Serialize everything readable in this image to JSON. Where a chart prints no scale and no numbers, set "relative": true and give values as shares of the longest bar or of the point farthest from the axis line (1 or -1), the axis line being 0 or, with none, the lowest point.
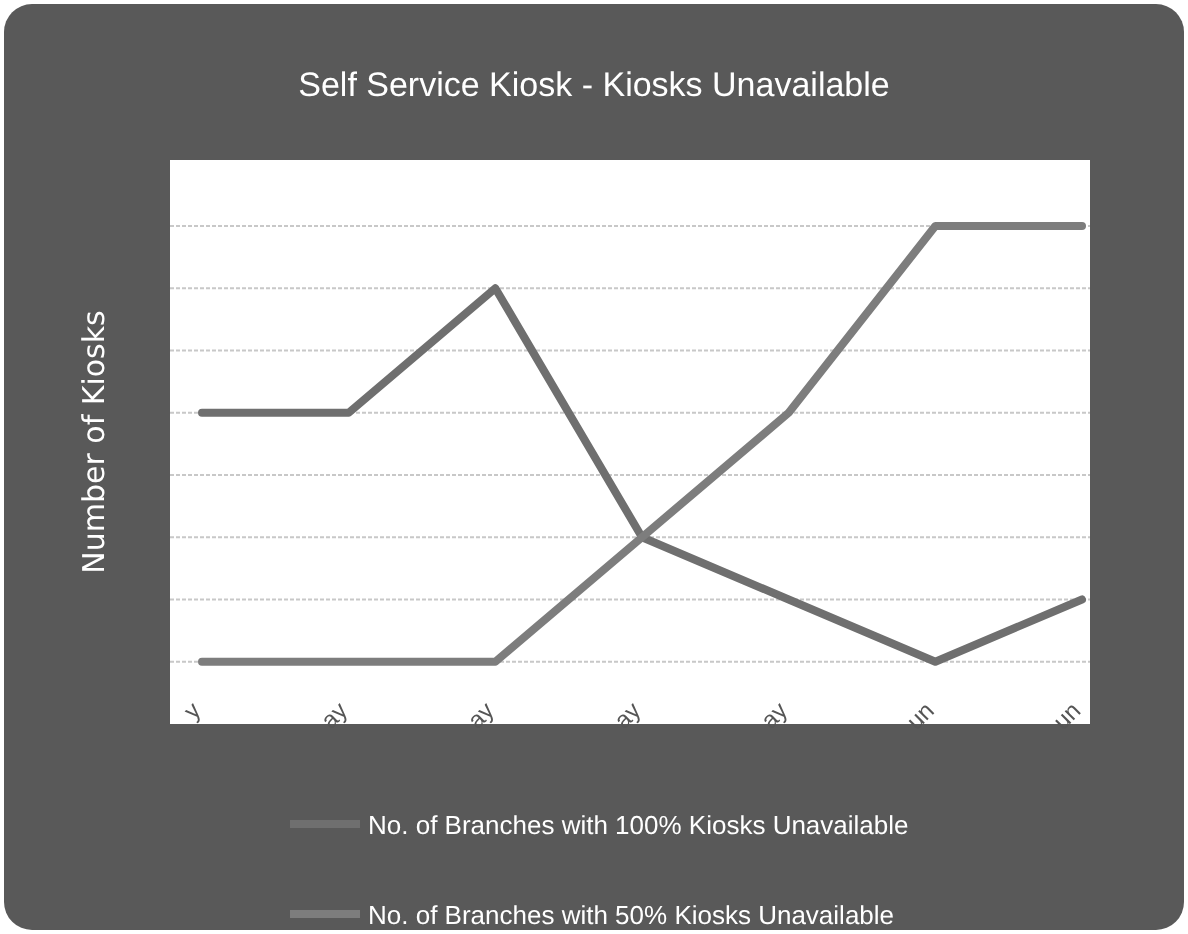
{
  "chart_data": {
    "type": "line",
    "title": "Self Service Kiosk - Kiosks Unavailable",
    "ylabel": "Number of Kiosks",
    "relative": true,
    "grid": true,
    "legend": "bottom",
    "marker": "none",
    "line_style": "solid",
    "categories": [
      "y",
      "ay",
      "ay",
      "ay",
      "ay",
      "un",
      "un"
    ],
    "series": [
      {
        "name": "No. of Branches with 100% Kiosks Unavailable",
        "color": "#6f6f6f",
        "values": [
          0.625,
          0.625,
          0.875,
          0.375,
          0.25,
          0.125,
          0.25
        ]
      },
      {
        "name": "No. of Branches with 50% Kiosks Unavailable",
        "color": "#7d7d7d",
        "values": [
          0.125,
          0.125,
          0.125,
          0.375,
          0.625,
          1,
          1
        ]
      }
    ]
  }
}
